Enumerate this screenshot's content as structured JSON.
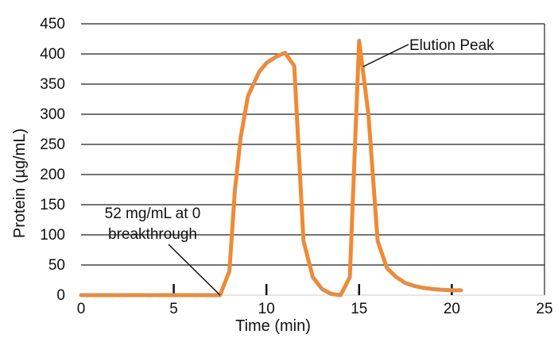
{
  "chart_data": {
    "type": "line",
    "xlabel": "Time (min)",
    "ylabel": "Protein (µg/mL)",
    "xlim": [
      0,
      25
    ],
    "ylim": [
      0,
      450
    ],
    "xticks": [
      "0",
      "5",
      "10",
      "15",
      "20",
      "25"
    ],
    "yticks": [
      "0",
      "50",
      "100",
      "150",
      "200",
      "250",
      "300",
      "350",
      "400",
      "450"
    ],
    "grid": "horizontal",
    "colors": {
      "line": "#f08a35",
      "marker": "#a0a0a0",
      "grid": "#222222"
    },
    "series": [
      {
        "x": [
          0,
          0.5,
          1,
          1.5,
          2,
          2.5,
          3,
          3.5,
          4,
          4.5,
          5,
          5.5,
          6,
          6.5,
          7,
          7.5,
          8,
          8.3,
          8.6,
          9,
          9.3,
          9.6,
          10,
          10.5,
          11,
          11.5,
          12,
          12.5,
          13,
          13.5,
          14,
          14.5,
          15,
          15.5,
          16,
          16.5,
          17,
          17.5,
          18,
          18.5,
          19,
          19.5,
          20,
          20.5
        ],
        "y": [
          0,
          0,
          0,
          0,
          0,
          0,
          0,
          0,
          0,
          0,
          0,
          0,
          0,
          0,
          0,
          0,
          40,
          175,
          260,
          330,
          350,
          370,
          385,
          395,
          402,
          380,
          90,
          30,
          10,
          2,
          0,
          30,
          422,
          300,
          90,
          45,
          30,
          20,
          15,
          12,
          10,
          9,
          8,
          8
        ]
      }
    ],
    "annotations": [
      {
        "lines": [
          "52 mg/mL at 0",
          "breakthrough"
        ],
        "x": 7.5,
        "y": 0
      },
      {
        "lines": [
          "Elution Peak"
        ],
        "x": 15,
        "y": 422
      }
    ]
  }
}
